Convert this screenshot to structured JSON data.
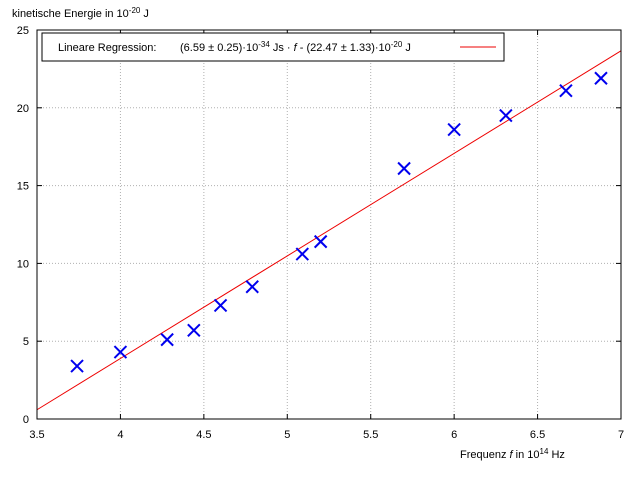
{
  "chart_data": {
    "type": "scatter",
    "title": "",
    "ylabel": {
      "base": "kinetische Energie in 10",
      "sup": "-20",
      "unit": " J"
    },
    "xlabel": {
      "base": "Frequenz ",
      "var": "f",
      "mid": " in 10",
      "sup": "14",
      "unit": " Hz"
    },
    "xlim": [
      3.5,
      7
    ],
    "ylim": [
      0,
      25
    ],
    "x_ticks": [
      "3.5",
      "4",
      "4.5",
      "5",
      "5.5",
      "6",
      "6.5",
      "7"
    ],
    "y_ticks": [
      "0",
      "5",
      "10",
      "15",
      "20",
      "25"
    ],
    "grid": true,
    "legend_position": "top-left",
    "colors": {
      "points": "#0000ee",
      "fit_line": "#ee0000",
      "grid": "#b0b0b0",
      "axes": "#000000"
    },
    "series": [
      {
        "type": "scatter",
        "marker": "x",
        "points": [
          {
            "x": 3.74,
            "y": 3.4
          },
          {
            "x": 4.0,
            "y": 4.3
          },
          {
            "x": 4.28,
            "y": 5.1
          },
          {
            "x": 4.44,
            "y": 5.7
          },
          {
            "x": 4.6,
            "y": 7.3
          },
          {
            "x": 4.79,
            "y": 8.5
          },
          {
            "x": 5.09,
            "y": 10.6
          },
          {
            "x": 5.2,
            "y": 11.4
          },
          {
            "x": 5.7,
            "y": 16.1
          },
          {
            "x": 6.0,
            "y": 18.6
          },
          {
            "x": 6.31,
            "y": 19.5
          },
          {
            "x": 6.67,
            "y": 21.1
          },
          {
            "x": 6.88,
            "y": 21.9
          }
        ]
      },
      {
        "type": "line",
        "name": "Lineare Regression:",
        "slope": 6.59,
        "intercept": -22.47,
        "x_range": [
          3.5,
          7
        ]
      }
    ],
    "legend": {
      "label": "Lineare Regression:",
      "formula_parts": [
        "(6.59 ± 0.25)·10",
        "-34",
        " Js · ",
        "f",
        " - (22.47 ± 1.33)·10",
        "-20",
        " J"
      ]
    }
  }
}
